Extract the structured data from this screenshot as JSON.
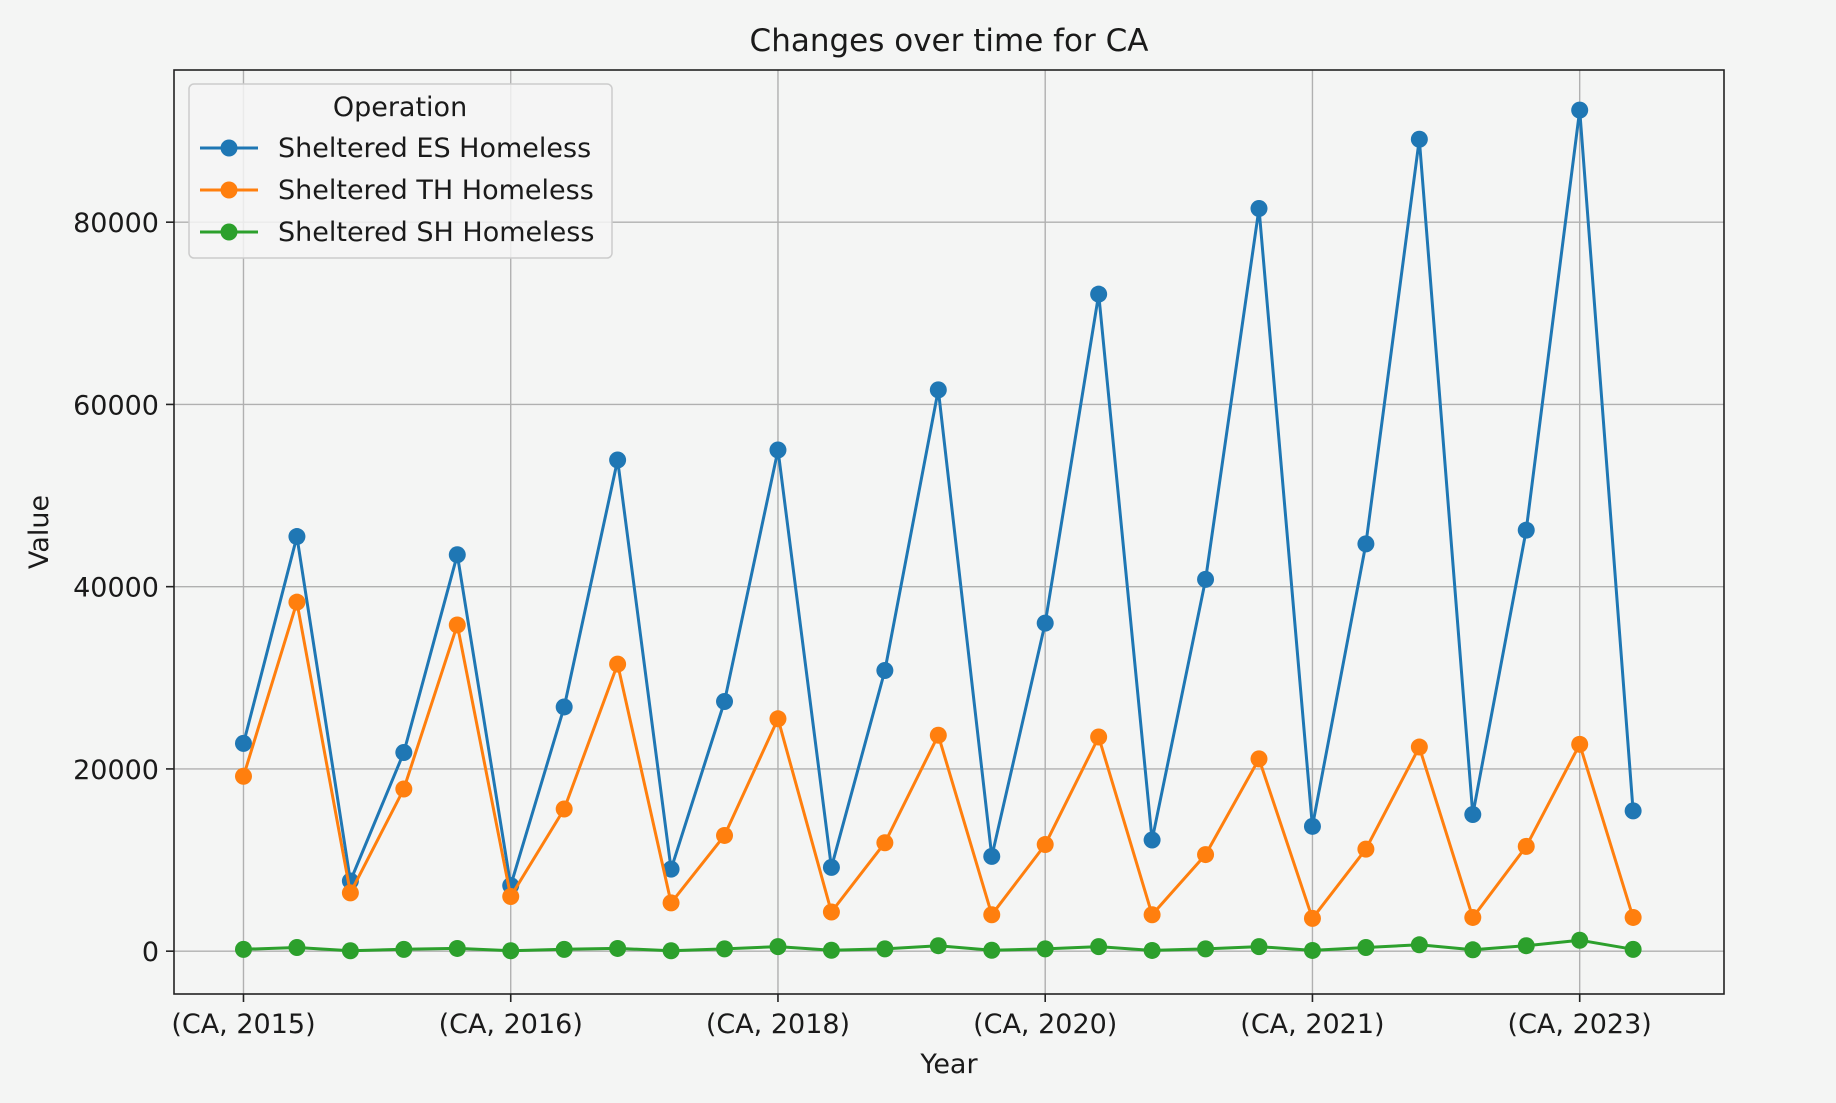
{
  "chart_data": {
    "type": "line",
    "title": "Changes over time for CA",
    "xlabel": "Year",
    "ylabel": "Value",
    "legend_title": "Operation",
    "legend_position": "upper-left",
    "grid": true,
    "x_tick_labels": [
      {
        "index": 0,
        "label": "(CA, 2015)"
      },
      {
        "index": 5,
        "label": "(CA, 2016)"
      },
      {
        "index": 10,
        "label": "(CA, 2018)"
      },
      {
        "index": 15,
        "label": "(CA, 2020)"
      },
      {
        "index": 20,
        "label": "(CA, 2021)"
      },
      {
        "index": 25,
        "label": "(CA, 2023)"
      }
    ],
    "xlim": [
      -1.3,
      27.7
    ],
    "ylim": [
      -4700,
      96700
    ],
    "y_ticks": [
      0,
      20000,
      40000,
      60000,
      80000
    ],
    "series": [
      {
        "name": "Sheltered ES Homeless",
        "color": "#1f77b4",
        "values": [
          22800,
          45500,
          7700,
          21800,
          43500,
          7200,
          26800,
          53900,
          9000,
          27400,
          55000,
          9200,
          30800,
          61600,
          10400,
          36000,
          72100,
          12200,
          40800,
          81500,
          13700,
          44700,
          89100,
          15000,
          46200,
          92300,
          15400
        ]
      },
      {
        "name": "Sheltered TH Homeless",
        "color": "#ff7f0e",
        "values": [
          19200,
          38300,
          6400,
          17800,
          35800,
          6000,
          15600,
          31500,
          5300,
          12700,
          25500,
          4300,
          11900,
          23700,
          4000,
          11700,
          23500,
          4000,
          10600,
          21100,
          3600,
          11200,
          22400,
          3700,
          11500,
          22700,
          3700
        ]
      },
      {
        "name": "Sheltered SH Homeless",
        "color": "#2ca02c",
        "values": [
          200,
          400,
          50,
          200,
          300,
          50,
          200,
          300,
          50,
          250,
          500,
          100,
          250,
          600,
          100,
          250,
          500,
          80,
          250,
          500,
          80,
          400,
          700,
          150,
          600,
          1200,
          200
        ]
      }
    ]
  }
}
